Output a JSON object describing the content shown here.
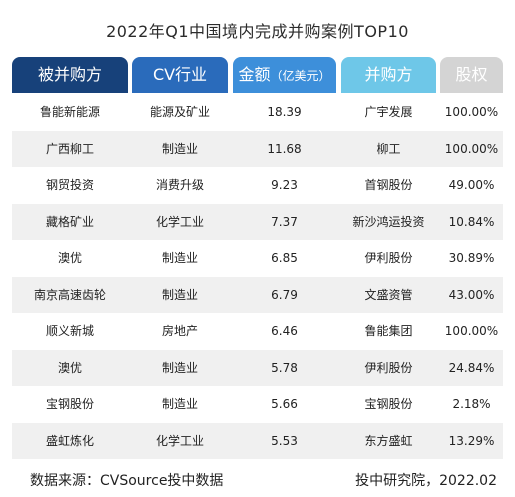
{
  "title": "2022年Q1中国境内完成并购案例TOP10",
  "header": {
    "columns": [
      {
        "label": "被并购方",
        "sub": "",
        "bg": "#17417a",
        "color": "#ffffff"
      },
      {
        "label": "CV行业",
        "sub": "",
        "bg": "#2a6bbb",
        "color": "#ffffff"
      },
      {
        "label": "金额",
        "sub": "（亿美元）",
        "bg": "#3d8fda",
        "color": "#ffffff"
      },
      {
        "label": "并购方",
        "sub": "",
        "bg": "#6ec7e8",
        "color": "#ffffff"
      },
      {
        "label": "股权",
        "sub": "",
        "bg": "#d4d4d4",
        "color": "#ffffff"
      }
    ]
  },
  "rows": [
    [
      "鲁能新能源",
      "能源及矿业",
      "18.39",
      "广宇发展",
      "100.00%"
    ],
    [
      "广西柳工",
      "制造业",
      "11.68",
      "柳工",
      "100.00%"
    ],
    [
      "钢贸投资",
      "消费升级",
      "9.23",
      "首钢股份",
      "49.00%"
    ],
    [
      "藏格矿业",
      "化学工业",
      "7.37",
      "新沙鸿运投资",
      "10.84%"
    ],
    [
      "澳优",
      "制造业",
      "6.85",
      "伊利股份",
      "30.89%"
    ],
    [
      "南京高速齿轮",
      "制造业",
      "6.79",
      "文盛资管",
      "43.00%"
    ],
    [
      "顺义新城",
      "房地产",
      "6.46",
      "鲁能集团",
      "100.00%"
    ],
    [
      "澳优",
      "制造业",
      "5.78",
      "伊利股份",
      "24.84%"
    ],
    [
      "宝钢股份",
      "制造业",
      "5.66",
      "宝钢股份",
      "2.18%"
    ],
    [
      "盛虹炼化",
      "化学工业",
      "5.53",
      "东方盛虹",
      "13.29%"
    ]
  ],
  "footer": {
    "source": "数据来源：CVSource投中数据",
    "credit": "投中研究院，2022.02"
  }
}
